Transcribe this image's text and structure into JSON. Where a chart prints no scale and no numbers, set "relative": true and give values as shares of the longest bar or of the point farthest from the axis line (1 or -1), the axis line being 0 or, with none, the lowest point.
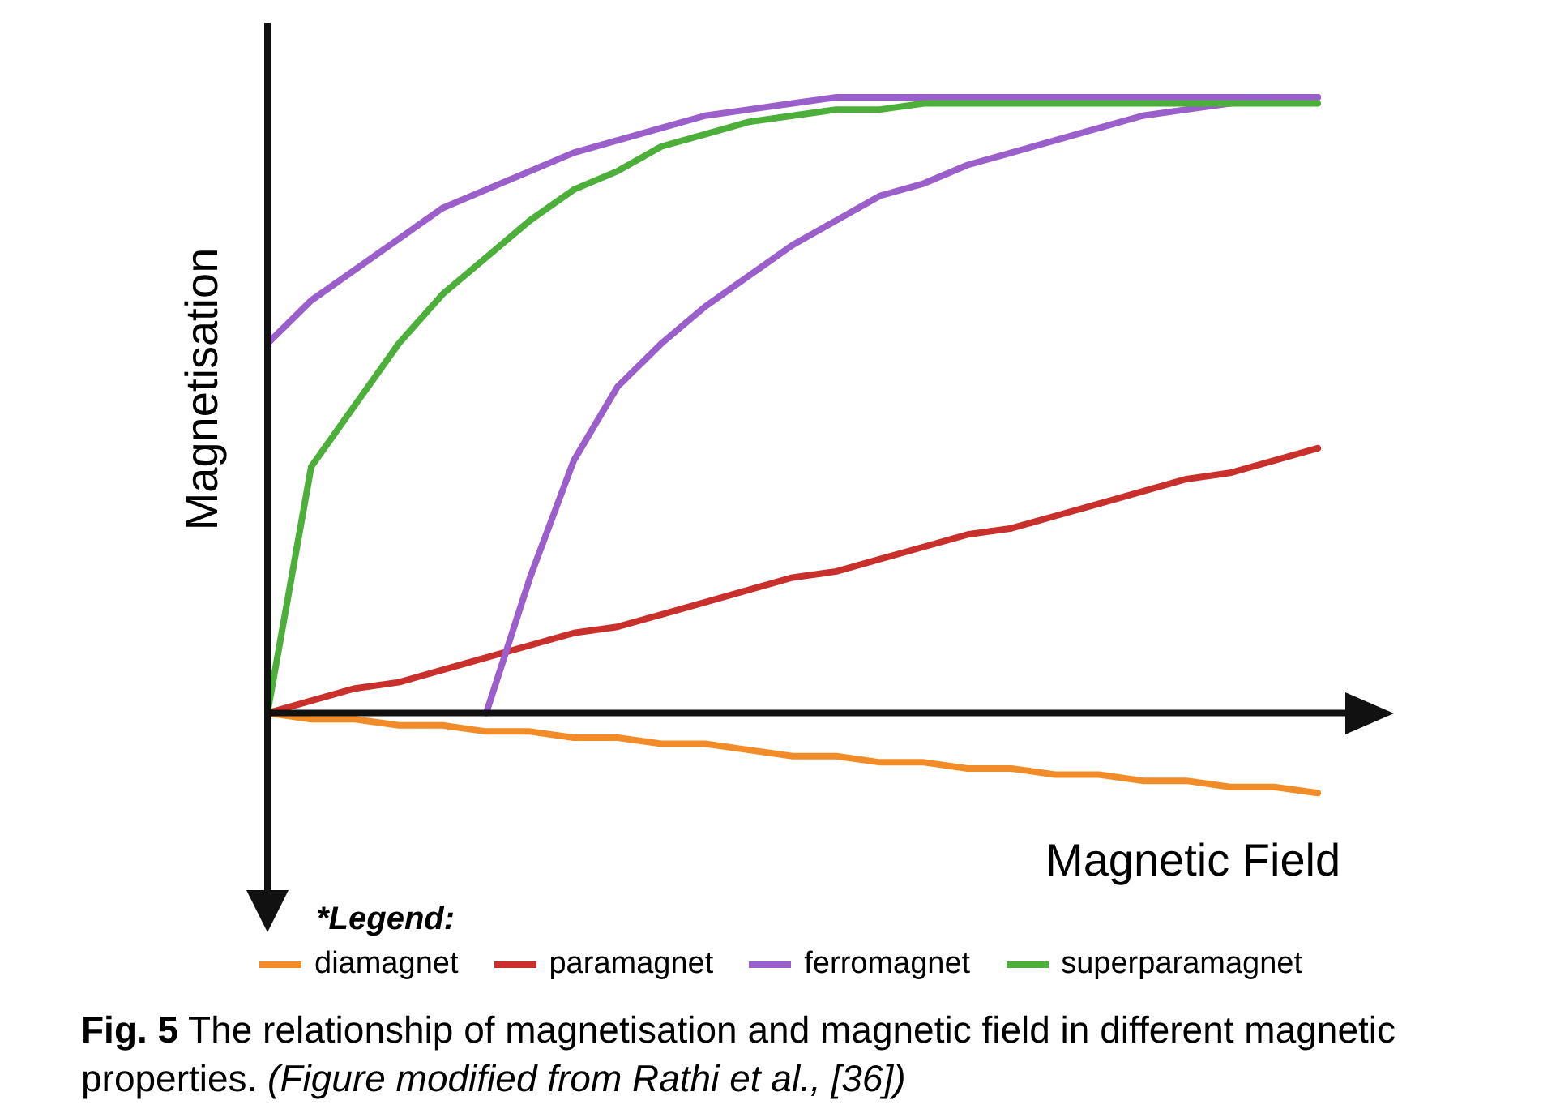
{
  "chart_data": {
    "type": "line",
    "relative": true,
    "xlabel": "Magnetic Field",
    "ylabel": "Magnetisation",
    "legend_title": "*Legend:",
    "legend": "bottom",
    "marker": "none",
    "line_style": "solid",
    "categories": [
      null,
      null,
      null,
      null,
      null,
      null,
      null,
      null,
      null,
      null,
      null,
      null,
      null,
      null,
      null,
      null,
      null,
      null,
      null,
      null,
      null,
      null,
      null,
      null,
      null
    ],
    "series": [
      {
        "name": "diamagnet",
        "color": "#f28c28",
        "values": [
          0,
          -0.01,
          -0.01,
          -0.02,
          -0.02,
          -0.03,
          -0.03,
          -0.04,
          -0.04,
          -0.05,
          -0.05,
          -0.06,
          -0.07,
          -0.07,
          -0.08,
          -0.08,
          -0.09,
          -0.09,
          -0.1,
          -0.1,
          -0.11,
          -0.11,
          -0.12,
          -0.12,
          -0.13
        ]
      },
      {
        "name": "paramagnet",
        "color": "#c9302c",
        "values": [
          0,
          0.02,
          0.04,
          0.05,
          0.07,
          0.09,
          0.11,
          0.13,
          0.14,
          0.16,
          0.18,
          0.2,
          0.22,
          0.23,
          0.25,
          0.27,
          0.29,
          0.3,
          0.32,
          0.34,
          0.36,
          0.38,
          0.39,
          0.41,
          0.43
        ]
      },
      {
        "name": "ferromagnet",
        "color": "#9b5fcb",
        "values": [
          0.6,
          0.67,
          0.72,
          0.77,
          0.82,
          0.85,
          0.88,
          0.91,
          0.93,
          0.95,
          0.97,
          0.98,
          0.99,
          1,
          1,
          1,
          1,
          1,
          1,
          1,
          1,
          1,
          1,
          1,
          1
        ]
      },
      {
        "color": "#9b5fcb",
        "values": [
          null,
          null,
          null,
          null,
          null,
          0,
          0.22,
          0.41,
          0.53,
          0.6,
          0.66,
          0.71,
          0.76,
          0.8,
          0.84,
          0.86,
          0.89,
          0.91,
          0.93,
          0.95,
          0.97,
          0.98,
          0.99,
          1,
          1
        ]
      },
      {
        "name": "superparamagnet",
        "color": "#4caf3a",
        "values": [
          0,
          0.4,
          0.5,
          0.6,
          0.68,
          0.74,
          0.8,
          0.85,
          0.88,
          0.92,
          0.94,
          0.96,
          0.97,
          0.98,
          0.98,
          0.99,
          0.99,
          0.99,
          0.99,
          0.99,
          0.99,
          0.99,
          0.99,
          0.99,
          0.99
        ]
      }
    ],
    "annotations": [
      "Fig. 5",
      "The relationship of magnetisation and magnetic field in different magnetic properties.",
      "(Figure modified from Rathi et al., [36])"
    ]
  }
}
